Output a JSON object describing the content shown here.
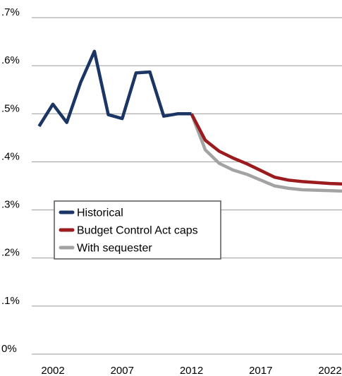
{
  "chart_data": {
    "type": "line",
    "title": "",
    "xlabel": "",
    "ylabel": "",
    "ylim": [
      0,
      0.7
    ],
    "xlim": [
      2001.5,
      2023
    ],
    "y_ticks": [
      {
        "value": 0.7,
        "label": ".7%"
      },
      {
        "value": 0.6,
        "label": ".6%"
      },
      {
        "value": 0.5,
        "label": ".5%"
      },
      {
        "value": 0.4,
        "label": ".4%"
      },
      {
        "value": 0.3,
        "label": ".3%"
      },
      {
        "value": 0.2,
        "label": ".2%"
      },
      {
        "value": 0.1,
        "label": ".1%"
      },
      {
        "value": 0.0,
        "label": "0%"
      }
    ],
    "x_ticks": [
      {
        "value": 2002,
        "label": "2002"
      },
      {
        "value": 2007,
        "label": "2007"
      },
      {
        "value": 2012,
        "label": "2012"
      },
      {
        "value": 2017,
        "label": "2017"
      },
      {
        "value": 2022,
        "label": "2022"
      }
    ],
    "grid": "horizontal",
    "legend_position": "lower-left",
    "series": [
      {
        "name": "Historical",
        "color": "#1b3564",
        "x": [
          2001,
          2002,
          2003,
          2004,
          2005,
          2006,
          2007,
          2008,
          2009,
          2010,
          2011,
          2012
        ],
        "y": [
          0.474,
          0.52,
          0.482,
          0.565,
          0.63,
          0.498,
          0.49,
          0.585,
          0.587,
          0.495,
          0.5,
          0.5
        ]
      },
      {
        "name": "Budget Control Act caps",
        "color": "#9b1b1e",
        "x": [
          2012,
          2013,
          2014,
          2015,
          2016,
          2017,
          2018,
          2019,
          2020,
          2021,
          2022,
          2023
        ],
        "y": [
          0.5,
          0.445,
          0.422,
          0.408,
          0.396,
          0.382,
          0.368,
          0.362,
          0.359,
          0.357,
          0.355,
          0.354
        ]
      },
      {
        "name": "With sequester",
        "color": "#a3a3a3",
        "x": [
          2012,
          2013,
          2014,
          2015,
          2016,
          2017,
          2018,
          2019,
          2020,
          2021,
          2022,
          2023
        ],
        "y": [
          0.5,
          0.425,
          0.397,
          0.383,
          0.374,
          0.362,
          0.35,
          0.345,
          0.342,
          0.341,
          0.34,
          0.339
        ]
      }
    ]
  }
}
